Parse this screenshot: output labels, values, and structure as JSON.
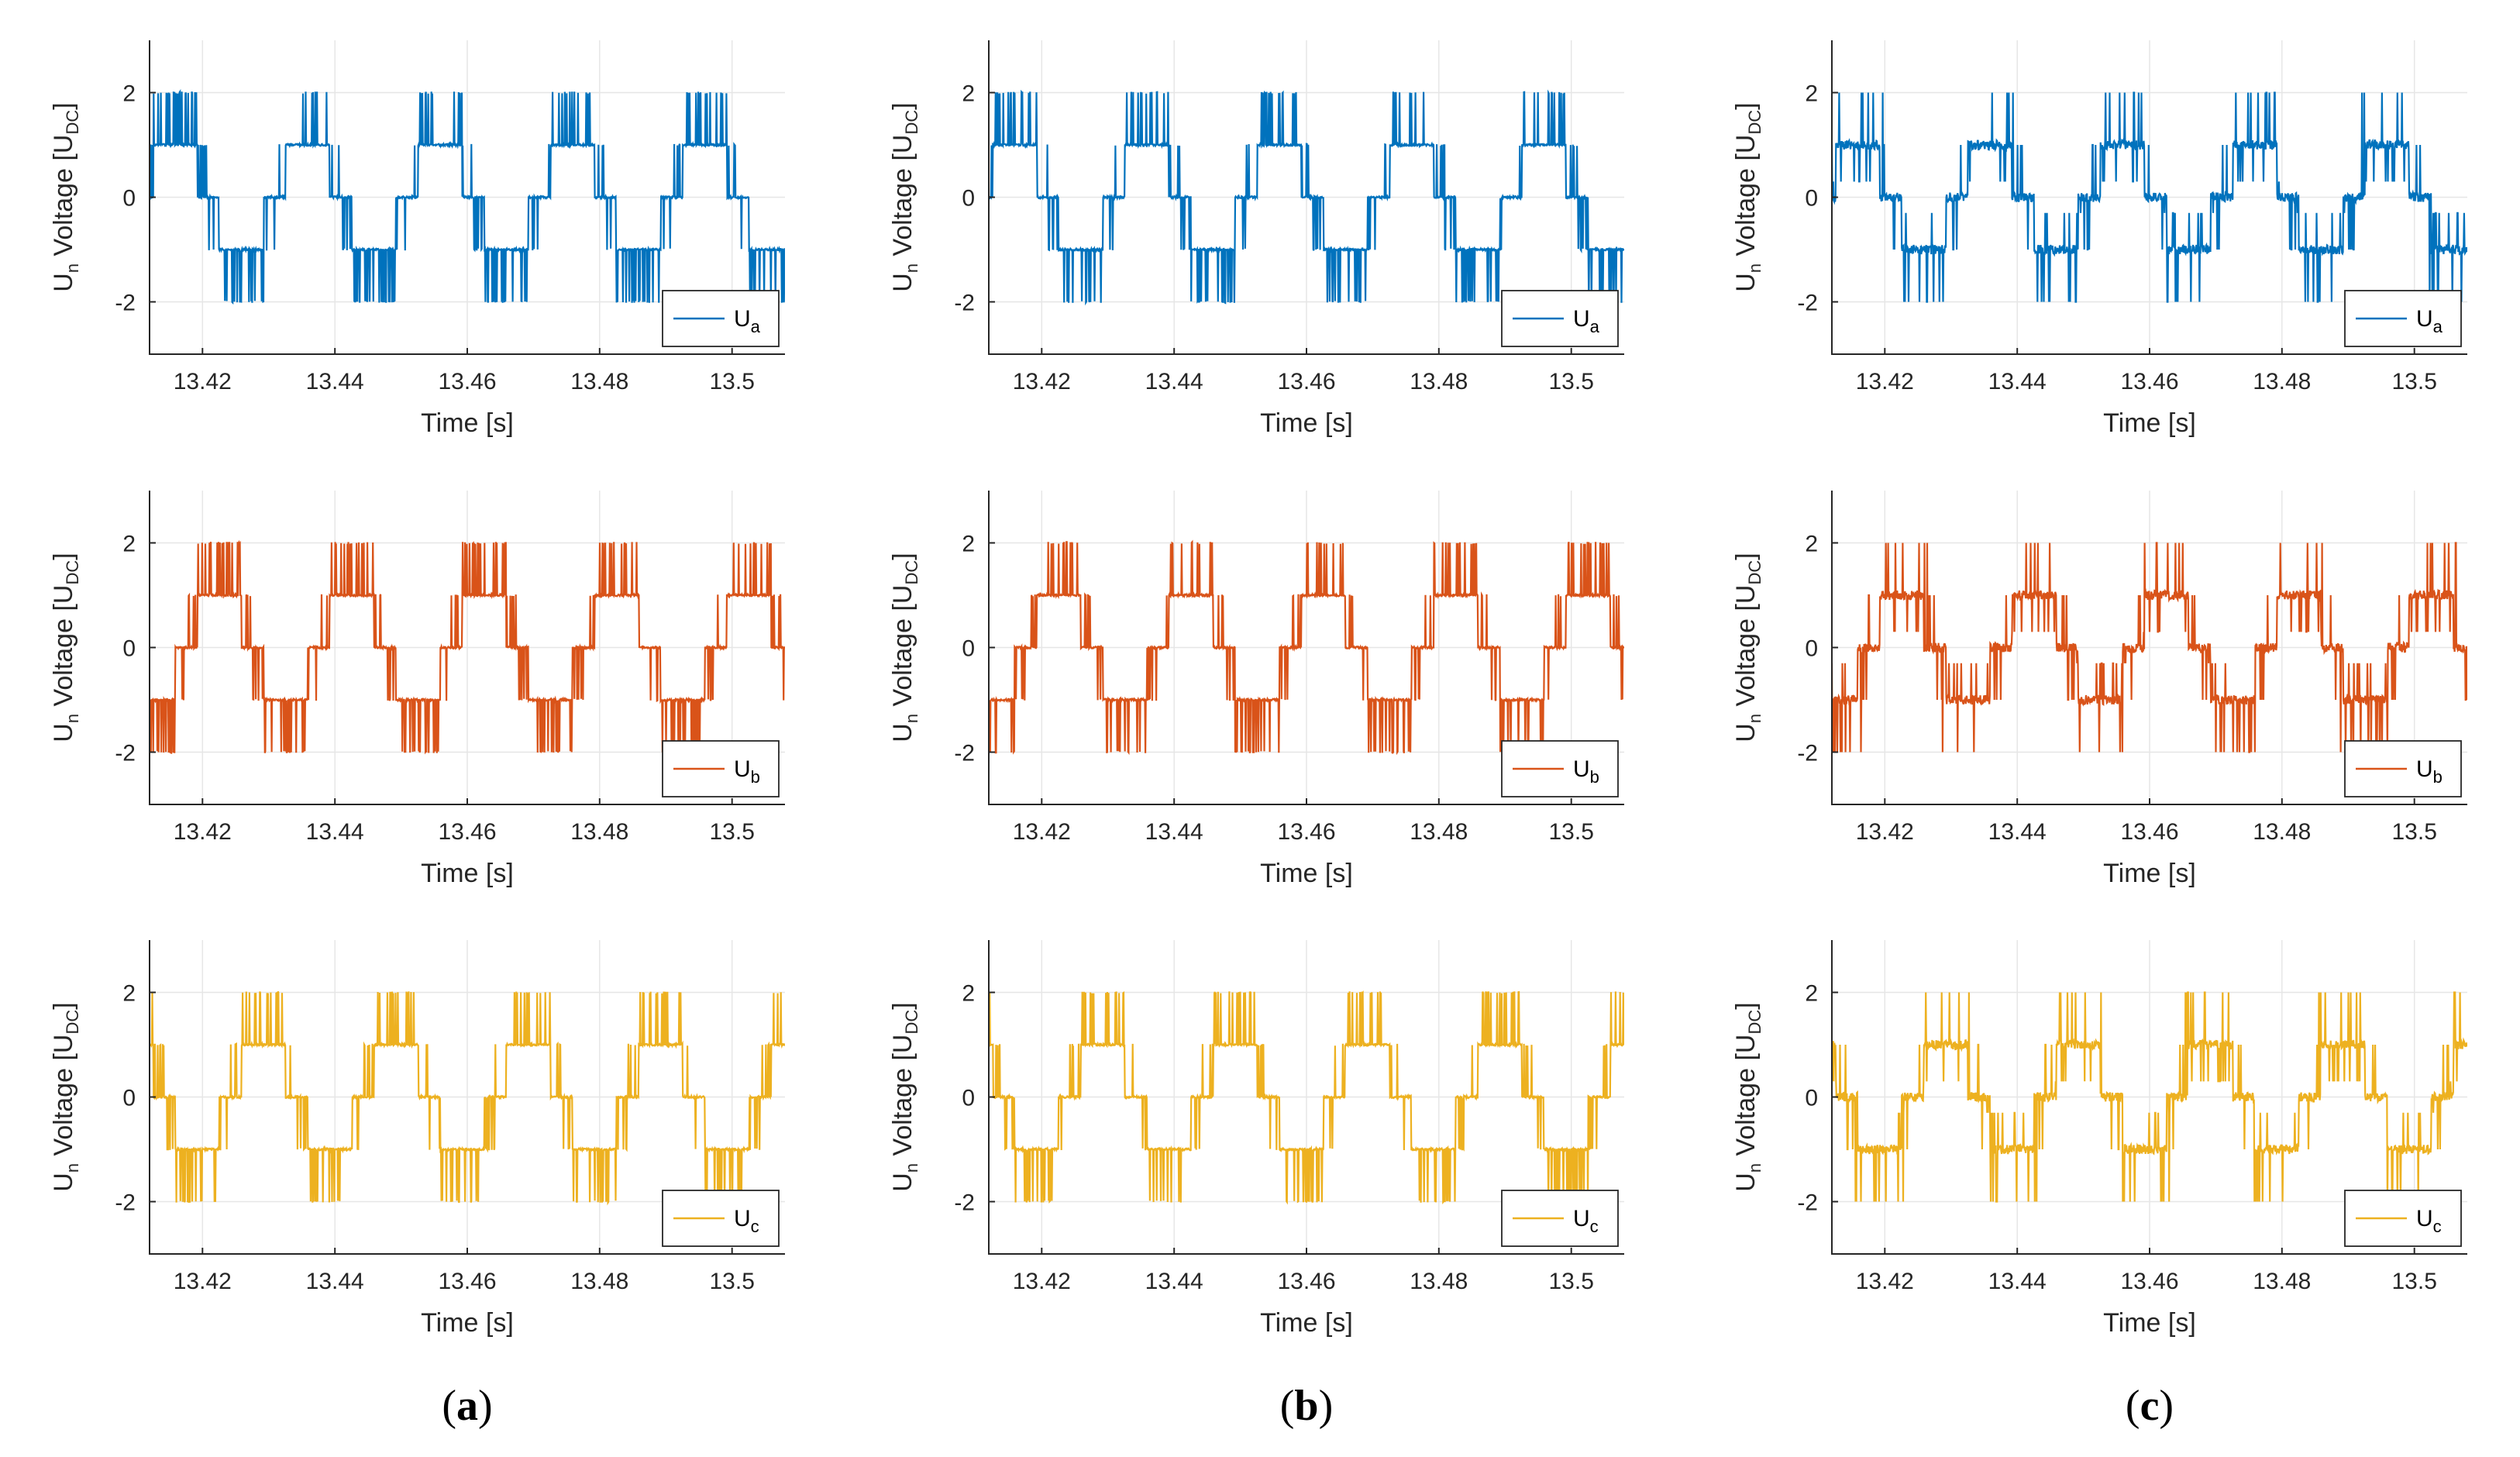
{
  "chart_data": {
    "type": "line",
    "title": "",
    "xlabel": "Time [s]",
    "ylabel_main": "U",
    "ylabel_main_sub": "n",
    "ylabel_text": " Voltage [U",
    "ylabel_sub": "DC",
    "ylabel_close": "]",
    "xlim": [
      13.412,
      13.508
    ],
    "ylim": [
      -3,
      3
    ],
    "xticks": [
      "13.42",
      "13.44",
      "13.46",
      "13.48",
      "13.5"
    ],
    "xtick_values": [
      13.42,
      13.44,
      13.46,
      13.48,
      13.5
    ],
    "yticks": [
      "2",
      "0",
      "-2"
    ],
    "ytick_values": [
      2,
      0,
      -2
    ],
    "grid": true,
    "legend_location": "bottom-right",
    "fundamental_frequency_hz": 50,
    "columns": [
      {
        "label_open": "(",
        "label_letter": "a",
        "label_close": ")",
        "method": "multilevel-pwm",
        "noise": 0.0
      },
      {
        "label_open": "(",
        "label_letter": "b",
        "label_close": ")",
        "method": "multilevel-pwm",
        "noise": 0.0
      },
      {
        "label_open": "(",
        "label_letter": "c",
        "label_close": ")",
        "method": "irregular-pwm",
        "noise": 0.12
      }
    ],
    "series": [
      {
        "name": "U",
        "subscript": "a",
        "color": "#0072BD",
        "phase_deg": 0
      },
      {
        "name": "U",
        "subscript": "b",
        "color": "#D95319",
        "phase_deg": -120
      },
      {
        "name": "U",
        "subscript": "c",
        "color": "#EDB120",
        "phase_deg": 120
      }
    ],
    "levels": [
      -2,
      -1,
      0,
      1,
      2
    ]
  }
}
